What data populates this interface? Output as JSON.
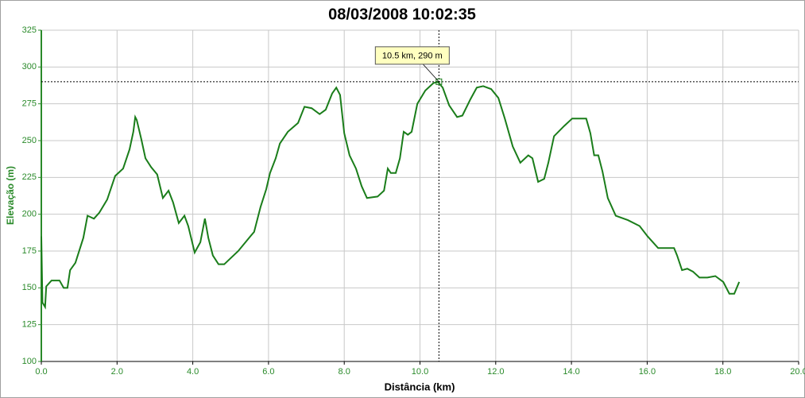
{
  "chart_data": {
    "type": "line",
    "title": "08/03/2008 10:02:35",
    "x_label": "Distância (km)",
    "y_label": "Elevação (m)",
    "xlim": [
      0,
      20
    ],
    "xticks": [
      {
        "value": 0,
        "label": "0.0"
      },
      {
        "value": 2,
        "label": "2.0"
      },
      {
        "value": 4,
        "label": "4.0"
      },
      {
        "value": 6,
        "label": "6.0"
      },
      {
        "value": 8,
        "label": "8.0"
      },
      {
        "value": 10,
        "label": "10.0"
      },
      {
        "value": 12,
        "label": "12.0"
      },
      {
        "value": 14,
        "label": "14.0"
      },
      {
        "value": 16,
        "label": "16.0"
      },
      {
        "value": 18,
        "label": "18.0"
      },
      {
        "value": 20,
        "label": "20.0"
      }
    ],
    "ylim": [
      100,
      325
    ],
    "yticks": [
      100,
      125,
      150,
      175,
      200,
      225,
      250,
      275,
      300,
      325
    ],
    "grid": true,
    "annotation": {
      "text": "10.5 km, 290 m",
      "x": 10.5,
      "y": 290
    },
    "series": [
      {
        "color": "#1a7d1a",
        "x": [
          0.0,
          0.03,
          0.1,
          0.13,
          0.27,
          0.48,
          0.59,
          0.69,
          0.76,
          0.9,
          1.11,
          1.22,
          1.39,
          1.53,
          1.74,
          1.95,
          2.16,
          2.33,
          2.43,
          2.48,
          2.52,
          2.64,
          2.75,
          2.9,
          3.06,
          3.21,
          3.36,
          3.48,
          3.63,
          3.78,
          3.88,
          4.05,
          4.2,
          4.32,
          4.41,
          4.53,
          4.68,
          4.83,
          5.2,
          5.52,
          5.62,
          5.79,
          5.94,
          6.04,
          6.19,
          6.3,
          6.51,
          6.78,
          6.95,
          7.14,
          7.35,
          7.51,
          7.68,
          7.79,
          7.89,
          8.0,
          8.14,
          8.31,
          8.46,
          8.6,
          8.88,
          9.05,
          9.15,
          9.23,
          9.36,
          9.47,
          9.57,
          9.68,
          9.78,
          9.93,
          10.14,
          10.35,
          10.47,
          10.6,
          10.77,
          10.98,
          11.12,
          11.33,
          11.5,
          11.67,
          11.88,
          12.07,
          12.24,
          12.45,
          12.65,
          12.86,
          12.97,
          13.12,
          13.28,
          13.39,
          13.54,
          13.81,
          14.02,
          14.39,
          14.5,
          14.6,
          14.71,
          14.82,
          14.96,
          15.17,
          15.49,
          15.8,
          16.01,
          16.29,
          16.5,
          16.71,
          16.79,
          16.92,
          17.06,
          17.21,
          17.38,
          17.59,
          17.8,
          18.01,
          18.17,
          18.3,
          18.43
        ],
        "values": [
          185,
          140,
          137,
          151,
          155,
          155,
          150,
          150,
          162,
          167,
          184,
          199,
          197,
          201,
          210,
          226,
          231,
          244,
          256,
          266,
          264,
          251,
          238,
          232,
          227,
          211,
          216,
          208,
          194,
          199,
          192,
          174,
          181,
          197,
          184,
          172,
          166,
          166,
          175,
          185,
          188,
          205,
          217,
          228,
          238,
          248,
          256,
          262,
          273,
          272,
          268,
          271,
          282,
          286,
          281,
          255,
          240,
          231,
          219,
          211,
          212,
          216,
          231,
          228,
          228,
          238,
          256,
          254,
          256,
          275,
          284,
          289,
          290,
          286,
          274,
          266,
          267,
          278,
          286,
          287,
          285,
          279,
          265,
          246,
          235,
          240,
          238,
          222,
          224,
          235,
          253,
          260,
          265,
          265,
          255,
          240,
          240,
          229,
          211,
          199,
          196,
          192,
          185,
          177,
          177,
          177,
          172,
          162,
          163,
          161,
          157,
          157,
          158,
          154,
          146,
          146,
          154
        ]
      }
    ]
  }
}
